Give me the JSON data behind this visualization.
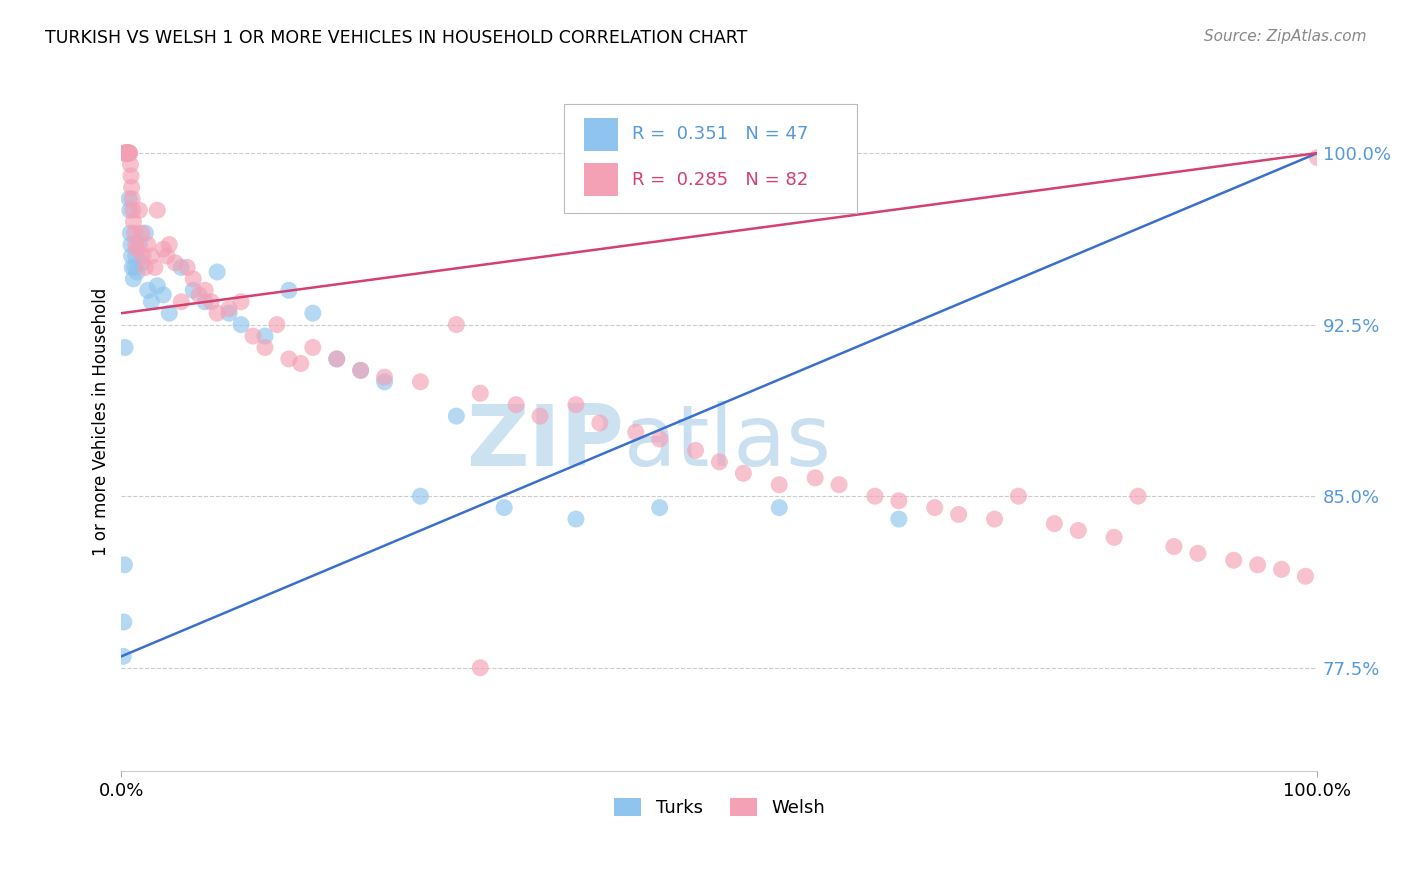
{
  "title": "TURKISH VS WELSH 1 OR MORE VEHICLES IN HOUSEHOLD CORRELATION CHART",
  "source": "Source: ZipAtlas.com",
  "ylabel": "1 or more Vehicles in Household",
  "ytick_labels": [
    "77.5%",
    "85.0%",
    "92.5%",
    "100.0%"
  ],
  "ytick_values": [
    77.5,
    85.0,
    92.5,
    100.0
  ],
  "xmin": 0.0,
  "xmax": 100.0,
  "ymin": 73.0,
  "ymax": 103.5,
  "legend_turks_R": "0.351",
  "legend_turks_N": "47",
  "legend_welsh_R": "0.285",
  "legend_welsh_N": "82",
  "turks_color": "#8EC4EE",
  "welsh_color": "#F4A0B5",
  "turks_line_color": "#3B6FCC",
  "welsh_line_color": "#D44070",
  "grid_color": "#CCCCCC",
  "ytick_color": "#5599DD",
  "turks_x": [
    0.15,
    0.2,
    0.25,
    0.3,
    0.35,
    0.4,
    0.45,
    0.5,
    0.55,
    0.6,
    0.65,
    0.7,
    0.75,
    0.8,
    0.85,
    0.9,
    1.0,
    1.1,
    1.2,
    1.3,
    1.5,
    1.7,
    2.0,
    2.2,
    2.5,
    3.0,
    3.5,
    4.0,
    5.0,
    6.0,
    7.0,
    8.0,
    9.0,
    10.0,
    12.0,
    14.0,
    16.0,
    18.0,
    20.0,
    22.0,
    25.0,
    28.0,
    32.0,
    38.0,
    45.0,
    55.0,
    65.0
  ],
  "turks_y": [
    78.0,
    79.5,
    82.0,
    91.5,
    100.0,
    100.0,
    100.0,
    100.0,
    100.0,
    100.0,
    98.0,
    97.5,
    96.5,
    96.0,
    95.5,
    95.0,
    94.5,
    95.0,
    95.5,
    94.8,
    96.0,
    95.2,
    96.5,
    94.0,
    93.5,
    94.2,
    93.8,
    93.0,
    95.0,
    94.0,
    93.5,
    94.8,
    93.0,
    92.5,
    92.0,
    94.0,
    93.0,
    91.0,
    90.5,
    90.0,
    85.0,
    88.5,
    84.5,
    84.0,
    84.5,
    84.5,
    84.0
  ],
  "welsh_x": [
    0.2,
    0.3,
    0.35,
    0.4,
    0.45,
    0.5,
    0.55,
    0.6,
    0.65,
    0.7,
    0.75,
    0.8,
    0.85,
    0.9,
    0.95,
    1.0,
    1.1,
    1.2,
    1.3,
    1.5,
    1.7,
    1.8,
    2.0,
    2.2,
    2.5,
    2.8,
    3.0,
    3.5,
    3.8,
    4.0,
    4.5,
    5.0,
    5.5,
    6.0,
    6.5,
    7.0,
    7.5,
    8.0,
    9.0,
    10.0,
    11.0,
    12.0,
    13.0,
    14.0,
    15.0,
    16.0,
    18.0,
    20.0,
    22.0,
    25.0,
    28.0,
    30.0,
    33.0,
    35.0,
    38.0,
    40.0,
    43.0,
    45.0,
    48.0,
    50.0,
    52.0,
    55.0,
    58.0,
    60.0,
    63.0,
    65.0,
    68.0,
    70.0,
    73.0,
    75.0,
    78.0,
    80.0,
    83.0,
    85.0,
    88.0,
    90.0,
    93.0,
    95.0,
    97.0,
    99.0,
    100.0,
    30.0
  ],
  "welsh_y": [
    100.0,
    100.0,
    100.0,
    100.0,
    100.0,
    100.0,
    100.0,
    100.0,
    100.0,
    100.0,
    99.5,
    99.0,
    98.5,
    98.0,
    97.5,
    97.0,
    96.5,
    96.0,
    95.8,
    97.5,
    96.5,
    95.5,
    95.0,
    96.0,
    95.5,
    95.0,
    97.5,
    95.8,
    95.5,
    96.0,
    95.2,
    93.5,
    95.0,
    94.5,
    93.8,
    94.0,
    93.5,
    93.0,
    93.2,
    93.5,
    92.0,
    91.5,
    92.5,
    91.0,
    90.8,
    91.5,
    91.0,
    90.5,
    90.2,
    90.0,
    92.5,
    89.5,
    89.0,
    88.5,
    89.0,
    88.2,
    87.8,
    87.5,
    87.0,
    86.5,
    86.0,
    85.5,
    85.8,
    85.5,
    85.0,
    84.8,
    84.5,
    84.2,
    84.0,
    85.0,
    83.8,
    83.5,
    83.2,
    85.0,
    82.8,
    82.5,
    82.2,
    82.0,
    81.8,
    81.5,
    99.8,
    77.5
  ]
}
